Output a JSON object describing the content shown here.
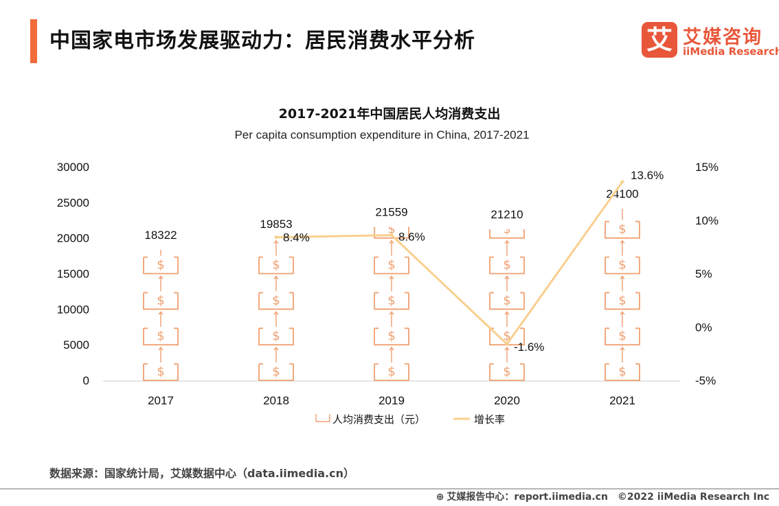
{
  "header": {
    "title": "中国家电市场发展驱动力：居民消费水平分析",
    "accent_color": "#f26b3a"
  },
  "logo": {
    "mark": "艾",
    "name_cn": "艾媒咨询",
    "name_en": "iiMedia Research",
    "color": "#e8573a"
  },
  "chart_data": {
    "type": "bar",
    "title": "2017-2021年中国居民人均消费支出",
    "subtitle": "Per capita consumption expenditure in China, 2017-2021",
    "categories": [
      "2017",
      "2018",
      "2019",
      "2020",
      "2021"
    ],
    "series": [
      {
        "name": "人均消费支出（元）",
        "type": "bar",
        "axis": "left",
        "values": [
          18322,
          19853,
          21559,
          21210,
          24100
        ],
        "color": "#f0a070"
      },
      {
        "name": "增长率",
        "type": "line",
        "axis": "right",
        "values": [
          null,
          8.4,
          8.6,
          -1.6,
          13.6
        ],
        "labels": [
          "",
          "8.4%",
          "8.6%",
          "-1.6%",
          "13.6%"
        ],
        "color": "#f9cf8e"
      }
    ],
    "y_left": {
      "min": 0,
      "max": 30000,
      "ticks": [
        "0",
        "5000",
        "10000",
        "15000",
        "20000",
        "25000",
        "30000"
      ]
    },
    "y_right": {
      "min": -5,
      "max": 15,
      "ticks": [
        "-5%",
        "0%",
        "5%",
        "10%",
        "15%"
      ]
    },
    "bar_style": "stacked money-box pictogram",
    "legend_position": "bottom",
    "grid": false
  },
  "source": "数据来源：国家统计局，艾媒数据中心（data.iimedia.cn）",
  "footer": {
    "report_site": "艾媒报告中心：report.iimedia.cn",
    "copyright": "©2022  iiMedia Research  Inc"
  }
}
